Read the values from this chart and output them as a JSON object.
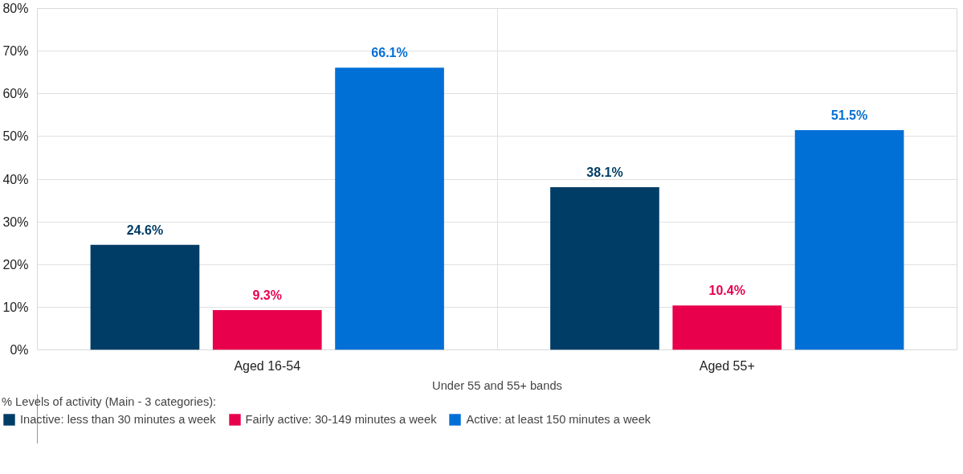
{
  "chart_data": {
    "type": "bar",
    "categories": [
      "Aged 16-54",
      "Aged 55+"
    ],
    "xlabel": "Under 55 and 55+ bands",
    "legend_title": "% Levels of activity (Main - 3 categories):",
    "series": [
      {
        "name": "Inactive: less than 30 minutes a week",
        "color": "#003d66",
        "values": [
          24.6,
          38.1
        ]
      },
      {
        "name": "Fairly active: 30-149 minutes a week",
        "color": "#e8004c",
        "values": [
          9.3,
          10.4
        ]
      },
      {
        "name": "Active: at least 150 minutes a week",
        "color": "#006fd6",
        "values": [
          66.1,
          51.5
        ]
      }
    ],
    "value_labels": [
      [
        "24.6%",
        "38.1%"
      ],
      [
        "9.3%",
        "10.4%"
      ],
      [
        "66.1%",
        "51.5%"
      ]
    ],
    "ylim": [
      0,
      80
    ],
    "yticks": [
      {
        "value": 0,
        "label": "0%"
      },
      {
        "value": 10,
        "label": "10%"
      },
      {
        "value": 20,
        "label": "20%"
      },
      {
        "value": 30,
        "label": "30%"
      },
      {
        "value": 40,
        "label": "40%"
      },
      {
        "value": 50,
        "label": "50%"
      },
      {
        "value": 60,
        "label": "60%"
      },
      {
        "value": 70,
        "label": "70%"
      },
      {
        "value": 80,
        "label": "80%"
      }
    ],
    "grid": true,
    "legend": "bottom"
  }
}
